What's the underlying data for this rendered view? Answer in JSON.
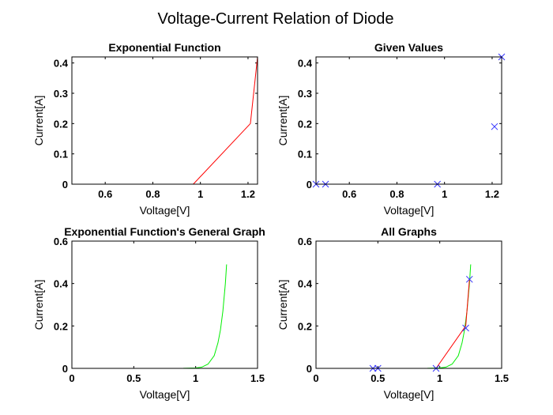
{
  "figure": {
    "title": "Voltage-Current Relation of Diode"
  },
  "colors": {
    "measured": "#ff0000",
    "given_marker": "#3333ff",
    "general": "#00ee00",
    "axis": "#000000"
  },
  "chart_data": [
    {
      "type": "line",
      "title": "Exponential Function",
      "xlabel": "Voltage[V]",
      "ylabel": "Current[A]",
      "xlim": [
        0.46,
        1.24
      ],
      "ylim": [
        0,
        0.42
      ],
      "xticks": [
        0.6,
        0.8,
        1,
        1.2
      ],
      "xtick_labels": [
        "0.6",
        "0.8",
        "1",
        "1.2"
      ],
      "yticks": [
        0,
        0.1,
        0.2,
        0.3,
        0.4
      ],
      "ytick_labels": [
        "0",
        "0.1",
        "0.2",
        "0.3",
        "0.4"
      ],
      "grid": false,
      "series": [
        {
          "style": "line",
          "color": "#ff0000",
          "x": [
            0.46,
            0.5,
            0.97,
            1.21,
            1.24
          ],
          "y": [
            0,
            0,
            0,
            0.2,
            0.42
          ]
        }
      ]
    },
    {
      "type": "scatter",
      "title": "Given Values",
      "xlabel": "Voltage[V]",
      "ylabel": "Current[A]",
      "xlim": [
        0.46,
        1.24
      ],
      "ylim": [
        0,
        0.42
      ],
      "xticks": [
        0.6,
        0.8,
        1,
        1.2
      ],
      "xtick_labels": [
        "0.6",
        "0.8",
        "1",
        "1.2"
      ],
      "yticks": [
        0,
        0.1,
        0.2,
        0.3,
        0.4
      ],
      "ytick_labels": [
        "0",
        "0.1",
        "0.2",
        "0.3",
        "0.4"
      ],
      "grid": false,
      "series": [
        {
          "style": "x",
          "color": "#3333ff",
          "x": [
            0.46,
            0.5,
            0.97,
            1.21,
            1.24
          ],
          "y": [
            0,
            0,
            0,
            0.19,
            0.42
          ]
        }
      ]
    },
    {
      "type": "line",
      "title": "Exponential Function's General Graph",
      "xlabel": "Voltage[V]",
      "ylabel": "Current[A]",
      "xlim": [
        0,
        1.5
      ],
      "ylim": [
        0,
        0.6
      ],
      "xticks": [
        0,
        0.5,
        1,
        1.5
      ],
      "xtick_labels": [
        "0",
        "0.5",
        "1",
        "1.5"
      ],
      "yticks": [
        0,
        0.2,
        0.4,
        0.6
      ],
      "ytick_labels": [
        "0",
        "0.2",
        "0.4",
        "0.6"
      ],
      "grid": false,
      "series": [
        {
          "style": "line",
          "color": "#00ee00",
          "x": [
            0,
            0.5,
            0.9,
            1.0,
            1.05,
            1.1,
            1.15,
            1.18,
            1.2,
            1.22,
            1.24,
            1.25
          ],
          "y": [
            0,
            0,
            0.0003,
            0.002,
            0.006,
            0.02,
            0.06,
            0.12,
            0.18,
            0.27,
            0.4,
            0.49
          ]
        }
      ]
    },
    {
      "type": "line",
      "title": "All Graphs",
      "xlabel": "Voltage[V]",
      "ylabel": "Current[A]",
      "xlim": [
        0,
        1.5
      ],
      "ylim": [
        0,
        0.6
      ],
      "xticks": [
        0,
        0.5,
        1,
        1.5
      ],
      "xtick_labels": [
        "0",
        "0.5",
        "1",
        "1.5"
      ],
      "yticks": [
        0,
        0.2,
        0.4,
        0.6
      ],
      "ytick_labels": [
        "0",
        "0.2",
        "0.4",
        "0.6"
      ],
      "grid": false,
      "series": [
        {
          "style": "line",
          "color": "#00ee00",
          "x": [
            0,
            0.5,
            0.9,
            1.0,
            1.05,
            1.1,
            1.15,
            1.18,
            1.2,
            1.22,
            1.24,
            1.25
          ],
          "y": [
            0,
            0,
            0.0003,
            0.002,
            0.006,
            0.02,
            0.06,
            0.12,
            0.18,
            0.27,
            0.4,
            0.49
          ]
        },
        {
          "style": "line",
          "color": "#ff0000",
          "x": [
            0.46,
            0.5,
            0.97,
            1.21,
            1.24
          ],
          "y": [
            0,
            0,
            0,
            0.2,
            0.42
          ]
        },
        {
          "style": "x",
          "color": "#3333ff",
          "x": [
            0.46,
            0.5,
            0.97,
            1.21,
            1.24
          ],
          "y": [
            0,
            0,
            0,
            0.19,
            0.42
          ]
        }
      ]
    }
  ]
}
